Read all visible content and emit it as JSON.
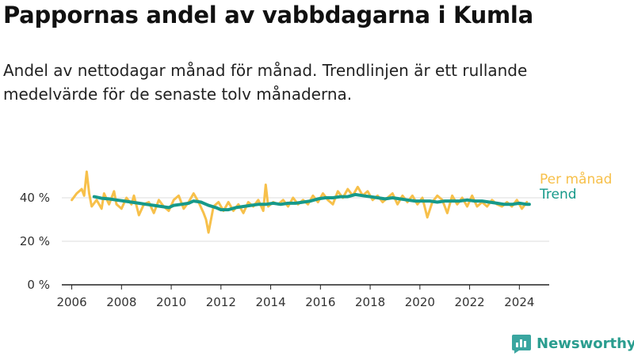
{
  "header": {
    "title": "Pappornas andel av vabbdagarna i Kumla",
    "subtitle": "Andel av nettodagar månad för månad. Trendlinjen är ett rullande medelvärde för de senaste tolv månaderna."
  },
  "brand": {
    "name": "Newsworthy",
    "icon": "newsworthy-logo-icon"
  },
  "colors": {
    "monthly": "#f7c04a",
    "trend": "#16998a",
    "axis": "#222222",
    "grid": "#dddddd"
  },
  "chart_data": {
    "type": "line",
    "title": "Pappornas andel av vabbdagarna i Kumla",
    "ylabel": "",
    "xlabel": "",
    "ylim": [
      0,
      60
    ],
    "xlim": [
      2005.6,
      2025.2
    ],
    "grid": true,
    "legend_placement": "right, inline at line ends",
    "x_ticks": [
      2006,
      2008,
      2010,
      2012,
      2014,
      2016,
      2018,
      2020,
      2022,
      2024
    ],
    "x_tick_labels": [
      "2006",
      "2008",
      "2010",
      "2012",
      "2014",
      "2016",
      "2018",
      "2020",
      "2022",
      "2024"
    ],
    "y_ticks": [
      0,
      20,
      40
    ],
    "y_tick_labels": [
      "0 %",
      "20 %",
      "40 %"
    ],
    "series": [
      {
        "name": "Per månad",
        "color": "#f7c04a",
        "points": [
          [
            2006.0,
            39
          ],
          [
            2006.2,
            42
          ],
          [
            2006.4,
            44
          ],
          [
            2006.5,
            41
          ],
          [
            2006.6,
            52
          ],
          [
            2006.7,
            42
          ],
          [
            2006.8,
            36
          ],
          [
            2007.0,
            39
          ],
          [
            2007.2,
            35
          ],
          [
            2007.3,
            42
          ],
          [
            2007.5,
            37
          ],
          [
            2007.7,
            43
          ],
          [
            2007.8,
            37
          ],
          [
            2008.0,
            35
          ],
          [
            2008.2,
            40
          ],
          [
            2008.4,
            37
          ],
          [
            2008.5,
            41
          ],
          [
            2008.7,
            32
          ],
          [
            2008.9,
            37
          ],
          [
            2009.1,
            38
          ],
          [
            2009.3,
            33
          ],
          [
            2009.5,
            39
          ],
          [
            2009.7,
            36
          ],
          [
            2009.9,
            34
          ],
          [
            2010.1,
            39
          ],
          [
            2010.3,
            41
          ],
          [
            2010.5,
            35
          ],
          [
            2010.7,
            38
          ],
          [
            2010.9,
            42
          ],
          [
            2011.1,
            38
          ],
          [
            2011.3,
            33
          ],
          [
            2011.4,
            30
          ],
          [
            2011.5,
            24
          ],
          [
            2011.7,
            36
          ],
          [
            2011.9,
            38
          ],
          [
            2012.1,
            34
          ],
          [
            2012.3,
            38
          ],
          [
            2012.5,
            34
          ],
          [
            2012.7,
            37
          ],
          [
            2012.9,
            33
          ],
          [
            2013.1,
            38
          ],
          [
            2013.3,
            36
          ],
          [
            2013.5,
            39
          ],
          [
            2013.7,
            34
          ],
          [
            2013.8,
            46
          ],
          [
            2013.9,
            36
          ],
          [
            2014.1,
            38
          ],
          [
            2014.3,
            37
          ],
          [
            2014.5,
            39
          ],
          [
            2014.7,
            36
          ],
          [
            2014.9,
            40
          ],
          [
            2015.1,
            37
          ],
          [
            2015.3,
            39
          ],
          [
            2015.5,
            37
          ],
          [
            2015.7,
            41
          ],
          [
            2015.9,
            38
          ],
          [
            2016.1,
            42
          ],
          [
            2016.3,
            39
          ],
          [
            2016.5,
            37
          ],
          [
            2016.7,
            43
          ],
          [
            2016.9,
            40
          ],
          [
            2017.1,
            44
          ],
          [
            2017.3,
            41
          ],
          [
            2017.5,
            45
          ],
          [
            2017.7,
            41
          ],
          [
            2017.9,
            43
          ],
          [
            2018.1,
            39
          ],
          [
            2018.3,
            41
          ],
          [
            2018.5,
            38
          ],
          [
            2018.7,
            40
          ],
          [
            2018.9,
            42
          ],
          [
            2019.1,
            37
          ],
          [
            2019.3,
            41
          ],
          [
            2019.5,
            38
          ],
          [
            2019.7,
            41
          ],
          [
            2019.9,
            37
          ],
          [
            2020.1,
            40
          ],
          [
            2020.3,
            31
          ],
          [
            2020.5,
            38
          ],
          [
            2020.7,
            41
          ],
          [
            2020.9,
            39
          ],
          [
            2021.1,
            33
          ],
          [
            2021.3,
            41
          ],
          [
            2021.5,
            37
          ],
          [
            2021.7,
            40
          ],
          [
            2021.9,
            36
          ],
          [
            2022.1,
            41
          ],
          [
            2022.3,
            36
          ],
          [
            2022.5,
            38
          ],
          [
            2022.7,
            36
          ],
          [
            2022.9,
            39
          ],
          [
            2023.1,
            37
          ],
          [
            2023.3,
            36
          ],
          [
            2023.5,
            38
          ],
          [
            2023.7,
            36
          ],
          [
            2023.9,
            39
          ],
          [
            2024.1,
            35
          ],
          [
            2024.3,
            38
          ]
        ]
      },
      {
        "name": "Trend",
        "color": "#16998a",
        "points": [
          [
            2006.9,
            40.5
          ],
          [
            2007.2,
            39.8
          ],
          [
            2007.5,
            39.5
          ],
          [
            2007.8,
            39.0
          ],
          [
            2008.1,
            38.5
          ],
          [
            2008.4,
            38.0
          ],
          [
            2008.7,
            37.5
          ],
          [
            2009.0,
            37.0
          ],
          [
            2009.3,
            36.5
          ],
          [
            2009.6,
            36.0
          ],
          [
            2009.9,
            35.5
          ],
          [
            2010.1,
            36.5
          ],
          [
            2010.4,
            37.0
          ],
          [
            2010.7,
            37.5
          ],
          [
            2010.9,
            38.5
          ],
          [
            2011.2,
            38.0
          ],
          [
            2011.5,
            36.5
          ],
          [
            2011.8,
            35.5
          ],
          [
            2012.0,
            34.5
          ],
          [
            2012.3,
            34.5
          ],
          [
            2012.6,
            35.5
          ],
          [
            2012.9,
            36.0
          ],
          [
            2013.2,
            36.5
          ],
          [
            2013.5,
            37.0
          ],
          [
            2013.8,
            37.0
          ],
          [
            2014.1,
            37.5
          ],
          [
            2014.4,
            37.0
          ],
          [
            2014.7,
            37.5
          ],
          [
            2015.0,
            37.5
          ],
          [
            2015.3,
            38.0
          ],
          [
            2015.6,
            38.5
          ],
          [
            2015.9,
            39.5
          ],
          [
            2016.2,
            40.0
          ],
          [
            2016.5,
            40.0
          ],
          [
            2016.8,
            40.5
          ],
          [
            2017.1,
            40.5
          ],
          [
            2017.4,
            41.5
          ],
          [
            2017.7,
            41.0
          ],
          [
            2018.0,
            40.5
          ],
          [
            2018.3,
            40.0
          ],
          [
            2018.6,
            39.5
          ],
          [
            2018.9,
            40.0
          ],
          [
            2019.2,
            39.5
          ],
          [
            2019.5,
            39.0
          ],
          [
            2019.8,
            38.5
          ],
          [
            2020.1,
            38.5
          ],
          [
            2020.4,
            38.5
          ],
          [
            2020.7,
            38.0
          ],
          [
            2021.0,
            38.5
          ],
          [
            2021.3,
            38.5
          ],
          [
            2021.6,
            38.5
          ],
          [
            2021.9,
            39.0
          ],
          [
            2022.2,
            38.5
          ],
          [
            2022.5,
            38.5
          ],
          [
            2022.8,
            38.0
          ],
          [
            2023.1,
            37.5
          ],
          [
            2023.4,
            37.0
          ],
          [
            2023.7,
            37.0
          ],
          [
            2024.0,
            37.5
          ],
          [
            2024.3,
            37.0
          ],
          [
            2024.4,
            37.0
          ]
        ]
      }
    ]
  }
}
